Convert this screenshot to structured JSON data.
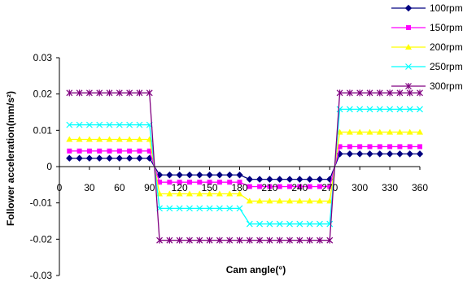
{
  "chart_data": {
    "type": "line",
    "xlabel": "Cam angle(°)",
    "ylabel": "Follower acceleration(mm/s²)",
    "xlim": [
      0,
      360
    ],
    "ylim": [
      -0.03,
      0.03
    ],
    "xticks": [
      0,
      30,
      60,
      90,
      120,
      150,
      180,
      210,
      240,
      270,
      300,
      330,
      360
    ],
    "yticks": [
      -0.03,
      -0.02,
      -0.01,
      0,
      0.01,
      0.02,
      0.03
    ],
    "ytick_labels": [
      "-0.03",
      "-0.02",
      "-0.01",
      "0",
      "0.01",
      "0.02",
      "0.03"
    ],
    "grid": false,
    "legend_position": "top-right",
    "x": [
      10,
      20,
      30,
      40,
      50,
      60,
      70,
      80,
      90,
      100,
      110,
      120,
      130,
      140,
      150,
      160,
      170,
      180,
      190,
      200,
      210,
      220,
      230,
      240,
      250,
      260,
      270,
      280,
      290,
      300,
      310,
      320,
      330,
      340,
      350,
      360
    ],
    "series": [
      {
        "name": "100rpm",
        "color": "#000080",
        "marker": "diamond",
        "values": [
          0.0023,
          0.0023,
          0.0023,
          0.0023,
          0.0023,
          0.0023,
          0.0023,
          0.0023,
          0.0023,
          -0.0023,
          -0.0023,
          -0.0023,
          -0.0023,
          -0.0023,
          -0.0023,
          -0.0023,
          -0.0023,
          -0.0023,
          -0.0035,
          -0.0035,
          -0.0035,
          -0.0035,
          -0.0035,
          -0.0035,
          -0.0035,
          -0.0035,
          -0.0035,
          0.0035,
          0.0035,
          0.0035,
          0.0035,
          0.0035,
          0.0035,
          0.0035,
          0.0035,
          0.0035
        ]
      },
      {
        "name": "150rpm",
        "color": "#ff00ff",
        "marker": "square",
        "values": [
          0.0043,
          0.0043,
          0.0043,
          0.0043,
          0.0043,
          0.0043,
          0.0043,
          0.0043,
          0.0043,
          -0.0043,
          -0.0043,
          -0.0043,
          -0.0043,
          -0.0043,
          -0.0043,
          -0.0043,
          -0.0043,
          -0.0043,
          -0.0055,
          -0.0055,
          -0.0055,
          -0.0055,
          -0.0055,
          -0.0055,
          -0.0055,
          -0.0055,
          -0.0055,
          0.0055,
          0.0055,
          0.0055,
          0.0055,
          0.0055,
          0.0055,
          0.0055,
          0.0055,
          0.0055
        ]
      },
      {
        "name": "200rpm",
        "color": "#ffff00",
        "marker": "triangle",
        "values": [
          0.0075,
          0.0075,
          0.0075,
          0.0075,
          0.0075,
          0.0075,
          0.0075,
          0.0075,
          0.0075,
          -0.0075,
          -0.0075,
          -0.0075,
          -0.0075,
          -0.0075,
          -0.0075,
          -0.0075,
          -0.0075,
          -0.0075,
          -0.0095,
          -0.0095,
          -0.0095,
          -0.0095,
          -0.0095,
          -0.0095,
          -0.0095,
          -0.0095,
          -0.0095,
          0.0095,
          0.0095,
          0.0095,
          0.0095,
          0.0095,
          0.0095,
          0.0095,
          0.0095,
          0.0095
        ]
      },
      {
        "name": "250rpm",
        "color": "#00ffff",
        "marker": "x",
        "values": [
          0.0115,
          0.0115,
          0.0115,
          0.0115,
          0.0115,
          0.0115,
          0.0115,
          0.0115,
          0.0115,
          -0.0115,
          -0.0115,
          -0.0115,
          -0.0115,
          -0.0115,
          -0.0115,
          -0.0115,
          -0.0115,
          -0.0115,
          -0.0158,
          -0.0158,
          -0.0158,
          -0.0158,
          -0.0158,
          -0.0158,
          -0.0158,
          -0.0158,
          -0.0158,
          0.0158,
          0.0158,
          0.0158,
          0.0158,
          0.0158,
          0.0158,
          0.0158,
          0.0158,
          0.0158
        ]
      },
      {
        "name": "300rpm",
        "color": "#800080",
        "marker": "star",
        "values": [
          0.0203,
          0.0203,
          0.0203,
          0.0203,
          0.0203,
          0.0203,
          0.0203,
          0.0203,
          0.0203,
          -0.0203,
          -0.0203,
          -0.0203,
          -0.0203,
          -0.0203,
          -0.0203,
          -0.0203,
          -0.0203,
          -0.0203,
          -0.0203,
          -0.0203,
          -0.0203,
          -0.0203,
          -0.0203,
          -0.0203,
          -0.0203,
          -0.0203,
          -0.0203,
          0.0203,
          0.0203,
          0.0203,
          0.0203,
          0.0203,
          0.0203,
          0.0203,
          0.0203,
          0.0203
        ]
      }
    ]
  }
}
